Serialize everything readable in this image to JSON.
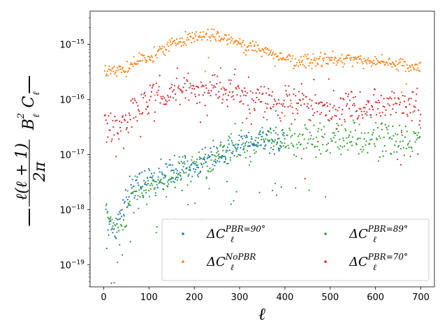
{
  "chart_data": {
    "type": "scatter",
    "title": "",
    "xlabel": "ℓ",
    "ylabel": "| ℓ(ℓ+1)/2π B_ℓ² C_ℓ |",
    "ylabel_parts": {
      "num": "ℓ(ℓ + 1)",
      "den": "2π",
      "tail": "B",
      "tail_sub": "ℓ",
      "tail_sup": "2",
      "c": "C",
      "c_sub": "ℓ",
      "bar": "|"
    },
    "xlim": [
      -30,
      730
    ],
    "ylim_log10": [
      -19.4,
      -14.4
    ],
    "yscale": "log",
    "x_ticks": [
      0,
      100,
      200,
      300,
      400,
      500,
      600,
      700
    ],
    "x_tick_labels": [
      "0",
      "100",
      "200",
      "300",
      "400",
      "500",
      "600",
      "700"
    ],
    "y_ticks_log10": [
      -19,
      -18,
      -17,
      -16,
      -15
    ],
    "y_tick_labels": [
      {
        "base": "10",
        "exp": "−19"
      },
      {
        "base": "10",
        "exp": "−18"
      },
      {
        "base": "10",
        "exp": "−17"
      },
      {
        "base": "10",
        "exp": "−16"
      },
      {
        "base": "10",
        "exp": "−15"
      }
    ],
    "legend_position": "lower-right",
    "series": [
      {
        "name": "PBR90",
        "label_main": "ΔC",
        "label_sub": "ℓ",
        "label_sup": "PBR=90°",
        "color": "#1f77b4",
        "x_range": [
          5,
          400
        ],
        "anchors_x": [
          5,
          20,
          35,
          50,
          70,
          100,
          150,
          200,
          250,
          300,
          350,
          400
        ],
        "anchors_log10": [
          -18.1,
          -18.5,
          -18.15,
          -17.8,
          -17.55,
          -17.45,
          -17.35,
          -17.25,
          -17.0,
          -16.83,
          -16.75,
          -16.72
        ],
        "scatter": 0.13
      },
      {
        "name": "NoPBR",
        "label_main": "ΔC",
        "label_sub": "ℓ",
        "label_sup": "NoPBR",
        "color": "#ff7f0e",
        "x_range": [
          2,
          700
        ],
        "anchors_x": [
          2,
          20,
          50,
          75,
          100,
          130,
          150,
          200,
          230,
          260,
          300,
          330,
          380,
          420,
          470,
          520,
          580,
          640,
          700
        ],
        "anchors_log10": [
          -15.55,
          -15.45,
          -15.47,
          -15.3,
          -15.25,
          -15.1,
          -14.95,
          -14.88,
          -14.8,
          -14.9,
          -14.97,
          -15.05,
          -15.22,
          -15.3,
          -15.3,
          -15.28,
          -15.3,
          -15.35,
          -15.45
        ],
        "scatter": 0.06
      },
      {
        "name": "PBR89",
        "label_main": "ΔC",
        "label_sub": "ℓ",
        "label_sup": "PBR=89°",
        "color": "#2ca02c",
        "x_range": [
          5,
          700
        ],
        "anchors_x": [
          5,
          30,
          50,
          70,
          100,
          150,
          200,
          250,
          300,
          350,
          400,
          500,
          600,
          700
        ],
        "anchors_log10": [
          -18.0,
          -18.5,
          -18.0,
          -17.75,
          -17.55,
          -17.38,
          -17.22,
          -17.02,
          -16.83,
          -16.73,
          -16.72,
          -16.73,
          -16.72,
          -16.72
        ],
        "scatter": 0.15
      },
      {
        "name": "PBR70",
        "label_main": "ΔC",
        "label_sub": "ℓ",
        "label_sup": "PBR=70°",
        "color": "#d62728",
        "x_range": [
          2,
          700
        ],
        "anchors_x": [
          2,
          30,
          60,
          80,
          100,
          140,
          180,
          230,
          270,
          320,
          380,
          450,
          500,
          560,
          620,
          700
        ],
        "anchors_log10": [
          -16.45,
          -16.5,
          -16.4,
          -16.15,
          -16.0,
          -15.85,
          -15.78,
          -15.78,
          -15.85,
          -15.95,
          -16.05,
          -16.05,
          -16.15,
          -16.1,
          -16.1,
          -16.2
        ],
        "scatter": 0.16
      }
    ]
  }
}
